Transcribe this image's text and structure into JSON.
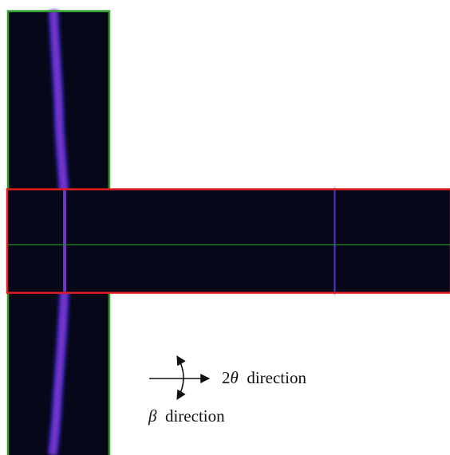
{
  "labels": {
    "horizontal": "2θ direction",
    "vertical": "β direction"
  }
}
